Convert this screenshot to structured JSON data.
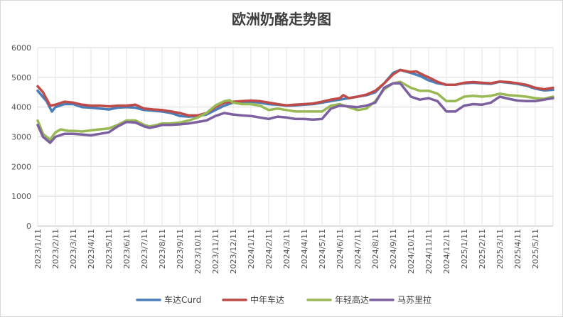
{
  "chart_data": {
    "type": "line",
    "title": "欧洲奶酪走势图",
    "xlabel": "",
    "ylabel": "",
    "ylim": [
      0,
      6000
    ],
    "yticks": [
      0,
      1000,
      2000,
      3000,
      4000,
      5000,
      6000
    ],
    "grid": true,
    "legend_position": "bottom",
    "x": [
      "2023/1/11",
      "2023/2/11",
      "2023/3/11",
      "2023/4/11",
      "2023/5/11",
      "2023/6/11",
      "2023/7/11",
      "2023/8/11",
      "2023/9/11",
      "2023/10/11",
      "2023/11/11",
      "2023/12/11",
      "2024/1/11",
      "2024/2/11",
      "2024/3/11",
      "2024/4/11",
      "2024/5/11",
      "2024/6/11",
      "2024/7/11",
      "2024/8/11",
      "2024/9/11",
      "2024/10/11",
      "2024/11/11",
      "2024/12/11",
      "2025/1/11",
      "2025/2/11",
      "2025/3/11",
      "2025/4/11",
      "2025/5/11"
    ],
    "x_end": "2025/6/11",
    "series": [
      {
        "name": "车达Curd",
        "color": "#4a7ebb",
        "values": [
          [
            0,
            4550
          ],
          [
            0.5,
            4200
          ],
          [
            0.8,
            3850
          ],
          [
            1,
            4000
          ],
          [
            1.5,
            4100
          ],
          [
            2,
            4100
          ],
          [
            2.5,
            4000
          ],
          [
            3,
            3980
          ],
          [
            3.5,
            3950
          ],
          [
            4,
            3920
          ],
          [
            4.5,
            3980
          ],
          [
            5,
            4000
          ],
          [
            5.5,
            3980
          ],
          [
            6,
            3900
          ],
          [
            6.5,
            3880
          ],
          [
            7,
            3850
          ],
          [
            7.5,
            3800
          ],
          [
            8,
            3700
          ],
          [
            8.5,
            3680
          ],
          [
            9,
            3700
          ],
          [
            9.5,
            3750
          ],
          [
            10,
            3900
          ],
          [
            10.5,
            4050
          ],
          [
            11,
            4150
          ],
          [
            11.5,
            4150
          ],
          [
            12,
            4180
          ],
          [
            12.5,
            4150
          ],
          [
            13,
            4100
          ],
          [
            13.5,
            4080
          ],
          [
            14,
            4050
          ],
          [
            14.5,
            4060
          ],
          [
            15,
            4080
          ],
          [
            15.5,
            4100
          ],
          [
            16,
            4150
          ],
          [
            16.5,
            4200
          ],
          [
            17,
            4250
          ],
          [
            17.5,
            4300
          ],
          [
            18,
            4350
          ],
          [
            18.5,
            4400
          ],
          [
            19,
            4500
          ],
          [
            19.5,
            4800
          ],
          [
            20,
            5150
          ],
          [
            20.4,
            5250
          ],
          [
            21,
            5150
          ],
          [
            21.5,
            5050
          ],
          [
            22,
            4900
          ],
          [
            22.5,
            4800
          ],
          [
            23,
            4750
          ],
          [
            23.5,
            4750
          ],
          [
            24,
            4800
          ],
          [
            24.5,
            4820
          ],
          [
            25,
            4800
          ],
          [
            25.5,
            4780
          ],
          [
            26,
            4850
          ],
          [
            26.5,
            4820
          ],
          [
            27,
            4780
          ],
          [
            27.5,
            4720
          ],
          [
            28,
            4620
          ],
          [
            28.5,
            4560
          ],
          [
            29,
            4580
          ]
        ]
      },
      {
        "name": "中年车达",
        "color": "#be4b48",
        "values": [
          [
            0,
            4700
          ],
          [
            0.3,
            4500
          ],
          [
            0.7,
            4050
          ],
          [
            1,
            4080
          ],
          [
            1.5,
            4180
          ],
          [
            2,
            4150
          ],
          [
            2.5,
            4080
          ],
          [
            3,
            4050
          ],
          [
            3.5,
            4050
          ],
          [
            4,
            4020
          ],
          [
            4.5,
            4050
          ],
          [
            5,
            4050
          ],
          [
            5.5,
            4080
          ],
          [
            6,
            3950
          ],
          [
            6.5,
            3920
          ],
          [
            7,
            3900
          ],
          [
            7.5,
            3850
          ],
          [
            8,
            3800
          ],
          [
            8.5,
            3720
          ],
          [
            9,
            3720
          ],
          [
            9.5,
            3800
          ],
          [
            10,
            4000
          ],
          [
            10.5,
            4150
          ],
          [
            11,
            4180
          ],
          [
            11.5,
            4200
          ],
          [
            12,
            4220
          ],
          [
            12.5,
            4200
          ],
          [
            13,
            4150
          ],
          [
            13.5,
            4100
          ],
          [
            14,
            4060
          ],
          [
            14.5,
            4080
          ],
          [
            15,
            4100
          ],
          [
            15.5,
            4120
          ],
          [
            16,
            4180
          ],
          [
            16.5,
            4250
          ],
          [
            17,
            4300
          ],
          [
            17.2,
            4400
          ],
          [
            17.5,
            4300
          ],
          [
            18,
            4350
          ],
          [
            18.5,
            4420
          ],
          [
            19,
            4550
          ],
          [
            19.5,
            4800
          ],
          [
            20,
            5100
          ],
          [
            20.4,
            5250
          ],
          [
            21,
            5180
          ],
          [
            21.3,
            5200
          ],
          [
            21.8,
            5050
          ],
          [
            22,
            5000
          ],
          [
            22.5,
            4850
          ],
          [
            23,
            4750
          ],
          [
            23.5,
            4750
          ],
          [
            24,
            4820
          ],
          [
            24.5,
            4840
          ],
          [
            25,
            4820
          ],
          [
            25.5,
            4800
          ],
          [
            26,
            4860
          ],
          [
            26.5,
            4840
          ],
          [
            27,
            4800
          ],
          [
            27.5,
            4750
          ],
          [
            28,
            4650
          ],
          [
            28.5,
            4600
          ],
          [
            29,
            4650
          ]
        ]
      },
      {
        "name": "年轻高达",
        "color": "#98b954",
        "values": [
          [
            0,
            3550
          ],
          [
            0.3,
            3100
          ],
          [
            0.7,
            2900
          ],
          [
            1,
            3150
          ],
          [
            1.3,
            3250
          ],
          [
            1.7,
            3200
          ],
          [
            2,
            3200
          ],
          [
            2.5,
            3180
          ],
          [
            3,
            3220
          ],
          [
            3.5,
            3250
          ],
          [
            4,
            3280
          ],
          [
            4.5,
            3400
          ],
          [
            5,
            3550
          ],
          [
            5.5,
            3550
          ],
          [
            6,
            3400
          ],
          [
            6.3,
            3350
          ],
          [
            6.7,
            3400
          ],
          [
            7,
            3450
          ],
          [
            7.5,
            3450
          ],
          [
            8,
            3480
          ],
          [
            8.5,
            3550
          ],
          [
            9,
            3650
          ],
          [
            9.5,
            3800
          ],
          [
            10,
            4050
          ],
          [
            10.5,
            4200
          ],
          [
            10.8,
            4230
          ],
          [
            11,
            4150
          ],
          [
            11.5,
            4100
          ],
          [
            12,
            4100
          ],
          [
            12.5,
            4050
          ],
          [
            13,
            3900
          ],
          [
            13.5,
            3950
          ],
          [
            14,
            3900
          ],
          [
            14.5,
            3850
          ],
          [
            15,
            3850
          ],
          [
            15.5,
            3850
          ],
          [
            16,
            3850
          ],
          [
            16.5,
            4050
          ],
          [
            17,
            4100
          ],
          [
            17.5,
            4000
          ],
          [
            18,
            3900
          ],
          [
            18.5,
            3950
          ],
          [
            19,
            4200
          ],
          [
            19.5,
            4600
          ],
          [
            20,
            4800
          ],
          [
            20.4,
            4850
          ],
          [
            21,
            4650
          ],
          [
            21.5,
            4550
          ],
          [
            22,
            4550
          ],
          [
            22.5,
            4450
          ],
          [
            23,
            4200
          ],
          [
            23.5,
            4200
          ],
          [
            24,
            4350
          ],
          [
            24.5,
            4380
          ],
          [
            25,
            4350
          ],
          [
            25.5,
            4380
          ],
          [
            26,
            4450
          ],
          [
            26.5,
            4400
          ],
          [
            27,
            4380
          ],
          [
            27.5,
            4350
          ],
          [
            28,
            4300
          ],
          [
            28.5,
            4280
          ],
          [
            29,
            4350
          ]
        ]
      },
      {
        "name": "马苏里拉",
        "color": "#7d60a0",
        "values": [
          [
            0,
            3400
          ],
          [
            0.3,
            3000
          ],
          [
            0.7,
            2800
          ],
          [
            1,
            3000
          ],
          [
            1.5,
            3100
          ],
          [
            2,
            3100
          ],
          [
            2.5,
            3080
          ],
          [
            3,
            3050
          ],
          [
            3.5,
            3100
          ],
          [
            4,
            3150
          ],
          [
            4.5,
            3350
          ],
          [
            5,
            3500
          ],
          [
            5.5,
            3480
          ],
          [
            6,
            3350
          ],
          [
            6.3,
            3300
          ],
          [
            6.7,
            3350
          ],
          [
            7,
            3400
          ],
          [
            7.5,
            3400
          ],
          [
            8,
            3420
          ],
          [
            8.5,
            3450
          ],
          [
            9,
            3500
          ],
          [
            9.5,
            3550
          ],
          [
            10,
            3700
          ],
          [
            10.5,
            3800
          ],
          [
            11,
            3750
          ],
          [
            11.5,
            3720
          ],
          [
            12,
            3700
          ],
          [
            12.5,
            3650
          ],
          [
            13,
            3600
          ],
          [
            13.5,
            3680
          ],
          [
            14,
            3650
          ],
          [
            14.5,
            3600
          ],
          [
            15,
            3600
          ],
          [
            15.5,
            3580
          ],
          [
            16,
            3600
          ],
          [
            16.5,
            3950
          ],
          [
            17,
            4050
          ],
          [
            17.5,
            4020
          ],
          [
            18,
            4000
          ],
          [
            18.5,
            4050
          ],
          [
            19,
            4150
          ],
          [
            19.5,
            4650
          ],
          [
            20,
            4800
          ],
          [
            20.4,
            4800
          ],
          [
            21,
            4350
          ],
          [
            21.5,
            4250
          ],
          [
            22,
            4300
          ],
          [
            22.5,
            4200
          ],
          [
            23,
            3850
          ],
          [
            23.5,
            3850
          ],
          [
            24,
            4050
          ],
          [
            24.5,
            4100
          ],
          [
            25,
            4080
          ],
          [
            25.5,
            4150
          ],
          [
            26,
            4350
          ],
          [
            26.5,
            4280
          ],
          [
            27,
            4220
          ],
          [
            27.5,
            4200
          ],
          [
            28,
            4200
          ],
          [
            28.5,
            4250
          ],
          [
            29,
            4300
          ]
        ]
      }
    ]
  }
}
